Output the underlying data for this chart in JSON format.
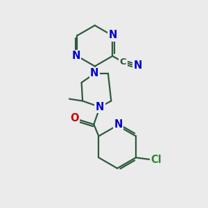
{
  "bg_color": "#ebebeb",
  "bond_color": "#2d5a3d",
  "N_color": "#0000cc",
  "O_color": "#cc0000",
  "Cl_color": "#2d8a2d",
  "line_width": 1.6,
  "font_size": 10.5,
  "fig_size": [
    3.0,
    3.0
  ],
  "dpi": 100,
  "xlim": [
    0,
    10
  ],
  "ylim": [
    0,
    10
  ]
}
